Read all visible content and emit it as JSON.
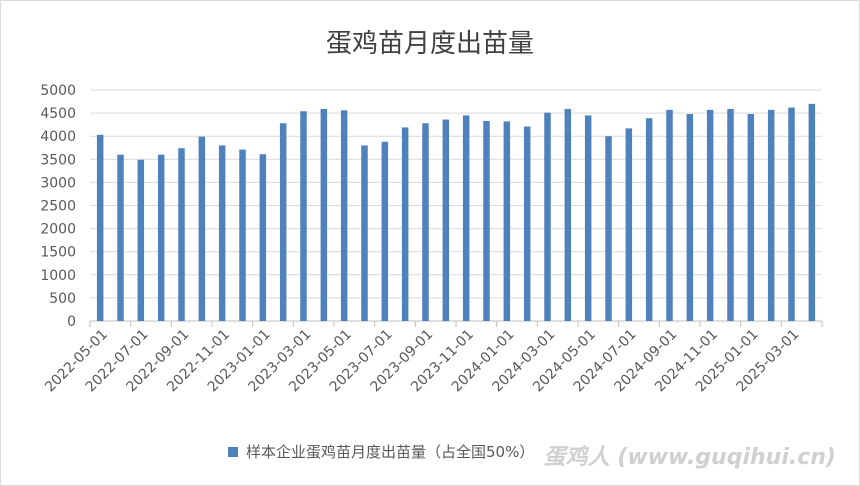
{
  "chart_data": {
    "type": "bar",
    "title": "蛋鸡苗月度出苗量",
    "ylim": [
      0,
      5000
    ],
    "yticks": [
      0,
      500,
      1000,
      1500,
      2000,
      2500,
      3000,
      3500,
      4000,
      4500,
      5000
    ],
    "grid": true,
    "legend_position": "bottom",
    "bar_color": "#4f81bd",
    "categories": [
      "2022-05-01",
      "2022-06-01",
      "2022-07-01",
      "2022-08-01",
      "2022-09-01",
      "2022-10-01",
      "2022-11-01",
      "2022-12-01",
      "2023-01-01",
      "2023-02-01",
      "2023-03-01",
      "2023-04-01",
      "2023-05-01",
      "2023-06-01",
      "2023-07-01",
      "2023-08-01",
      "2023-09-01",
      "2023-10-01",
      "2023-11-01",
      "2023-12-01",
      "2024-01-01",
      "2024-02-01",
      "2024-03-01",
      "2024-04-01",
      "2024-05-01",
      "2024-06-01",
      "2024-07-01",
      "2024-08-01",
      "2024-09-01",
      "2024-10-01",
      "2024-11-01",
      "2024-12-01",
      "2025-01-01",
      "2025-02-01",
      "2025-03-01",
      "2025-04-01"
    ],
    "xtick_labels": [
      "2022-05-01",
      "2022-07-01",
      "2022-09-01",
      "2022-11-01",
      "2023-01-01",
      "2023-03-01",
      "2023-05-01",
      "2023-07-01",
      "2023-09-01",
      "2023-11-01",
      "2024-01-01",
      "2024-03-01",
      "2024-05-01",
      "2024-07-01",
      "2024-09-01",
      "2024-11-01",
      "2025-01-01",
      "2025-03-01"
    ],
    "series": [
      {
        "name": "样本企业蛋鸡苗月度出苗量（占全国50%）",
        "values": [
          4030,
          3600,
          3490,
          3600,
          3740,
          3990,
          3800,
          3710,
          3610,
          4280,
          4540,
          4590,
          4560,
          3800,
          3880,
          4190,
          4280,
          4360,
          4450,
          4330,
          4320,
          4210,
          4510,
          4590,
          4450,
          4000,
          4170,
          4390,
          4570,
          4480,
          4570,
          4590,
          4480,
          4570,
          4620,
          4700
        ]
      }
    ]
  },
  "watermark": "蛋鸡人 (www.guqihui.cn)"
}
